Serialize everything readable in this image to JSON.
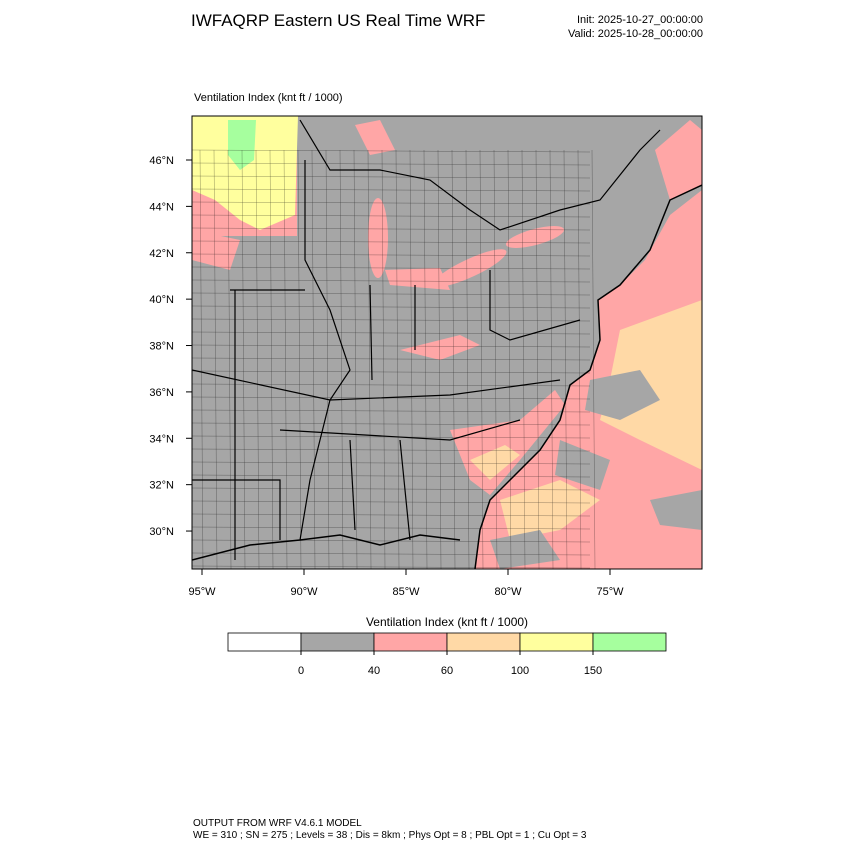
{
  "header": {
    "title": "IWFAQRP Eastern US Real Time WRF",
    "init": "Init: 2025-10-27_00:00:00",
    "valid": "Valid: 2025-10-28_00:00:00"
  },
  "map": {
    "title": "Ventilation Index   (knt ft / 1000)",
    "lat_labels": [
      {
        "value": 30,
        "label": "30°N"
      },
      {
        "value": 32,
        "label": "32°N"
      },
      {
        "value": 34,
        "label": "34°N"
      },
      {
        "value": 36,
        "label": "36°N"
      },
      {
        "value": 38,
        "label": "38°N"
      },
      {
        "value": 40,
        "label": "40°N"
      },
      {
        "value": 42,
        "label": "42°N"
      },
      {
        "value": 44,
        "label": "44°N"
      },
      {
        "value": 46,
        "label": "46°N"
      }
    ],
    "lon_labels": [
      {
        "value": -95,
        "label": "95°W"
      },
      {
        "value": -90,
        "label": "90°W"
      },
      {
        "value": -85,
        "label": "85°W"
      },
      {
        "value": -80,
        "label": "80°W"
      },
      {
        "value": -75,
        "label": "75°W"
      }
    ]
  },
  "colorbar": {
    "title": "Ventilation Index  (knt ft / 1000)",
    "levels": [
      0,
      40,
      60,
      100,
      150
    ],
    "colors": [
      "#ffffff",
      "#a6a6a6",
      "#ffa6a6",
      "#ffd9a6",
      "#ffff9e",
      "#a6ff9e"
    ]
  },
  "footer": {
    "line1": "OUTPUT FROM WRF V4.6.1 MODEL",
    "line2": "WE = 310 ; SN = 275 ; Levels = 38 ; Dis = 8km ; Phys Opt = 8 ; PBL Opt = 1 ; Cu Opt = 3"
  }
}
